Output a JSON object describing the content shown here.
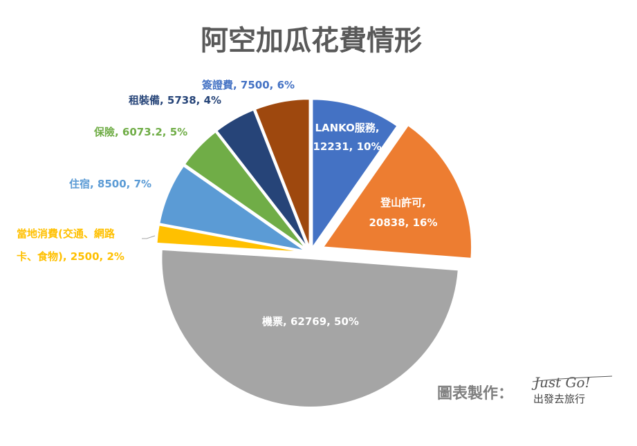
{
  "chart_data": {
    "type": "pie",
    "title": "阿空加瓜花費情形",
    "slices": [
      {
        "label": "LANKO服務,",
        "value_text": "12231, 10%",
        "value": 12231,
        "percent": 10,
        "color": "#4472C4",
        "label_color": "#ffffff"
      },
      {
        "label": "登山許可,",
        "value_text": "20838, 16%",
        "value": 20838,
        "percent": 16,
        "color": "#ED7D31",
        "label_color": "#ffffff"
      },
      {
        "label": "機票,",
        "value_text": "62769, 50%",
        "value": 62769,
        "percent": 50,
        "color": "#A5A5A5",
        "label_color": "#ffffff"
      },
      {
        "label": "當地消費(交通、網路",
        "value_text": "卡、食物), 2500, 2%",
        "value": 2500,
        "percent": 2,
        "color": "#FFC000",
        "label_color": "#FFC000"
      },
      {
        "label": "住宿,",
        "value_text": "8500, 7%",
        "value": 8500,
        "percent": 7,
        "color": "#5B9BD5",
        "label_color": "#5B9BD5"
      },
      {
        "label": "保險,",
        "value_text": "6073.2, 5%",
        "value": 6073.2,
        "percent": 5,
        "color": "#70AD47",
        "label_color": "#70AD47"
      },
      {
        "label": "租裝備,",
        "value_text": "5738, 4%",
        "value": 5738,
        "percent": 4,
        "color": "#264478",
        "label_color": "#264478"
      },
      {
        "label": "簽證費,",
        "value_text": "7500, 6%",
        "value": 7500,
        "percent": 6,
        "color": "#9E480E",
        "label_color": "#4472C4"
      }
    ]
  },
  "credit": {
    "label": "圖表製作：",
    "brand_script": "Just Go!",
    "brand_name": "出發去旅行"
  }
}
